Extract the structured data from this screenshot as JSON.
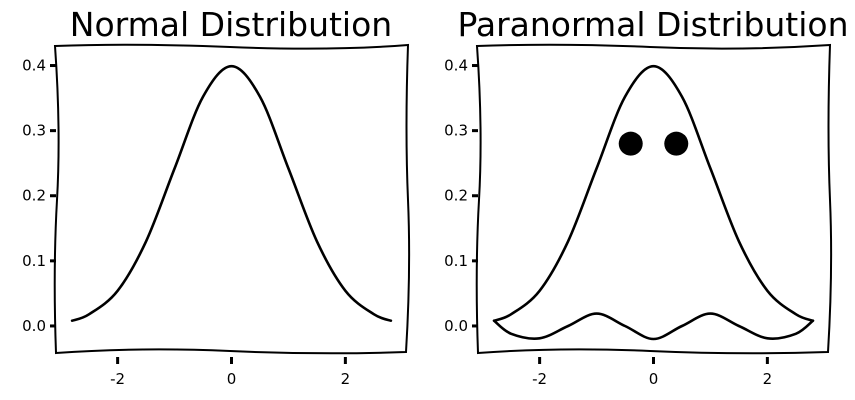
{
  "chart_data": [
    {
      "type": "line",
      "title": "Normal Distribution",
      "xlim": [
        -3.1,
        3.1
      ],
      "ylim": [
        -0.04,
        0.43
      ],
      "x_ticks": [
        -2,
        0,
        2
      ],
      "y_ticks": [
        0.0,
        0.1,
        0.2,
        0.3,
        0.4
      ],
      "x_tick_labels": [
        "-2",
        "0",
        "2"
      ],
      "y_tick_labels": [
        "0.0",
        "0.1",
        "0.2",
        "0.3",
        "0.4"
      ],
      "grid": false,
      "series": [
        {
          "x": [
            -2.8,
            -2.5,
            -2.0,
            -1.5,
            -1.0,
            -0.5,
            0.0,
            0.5,
            1.0,
            1.5,
            2.0,
            2.5,
            2.8
          ],
          "y": [
            0.008,
            0.018,
            0.054,
            0.13,
            0.242,
            0.352,
            0.399,
            0.352,
            0.242,
            0.13,
            0.054,
            0.018,
            0.008
          ]
        }
      ]
    },
    {
      "type": "line",
      "title": "Paranormal Distribution",
      "xlim": [
        -3.1,
        3.1
      ],
      "ylim": [
        -0.04,
        0.43
      ],
      "x_ticks": [
        -2,
        0,
        2
      ],
      "y_ticks": [
        0.0,
        0.1,
        0.2,
        0.3,
        0.4
      ],
      "x_tick_labels": [
        "-2",
        "0",
        "2"
      ],
      "y_tick_labels": [
        "0.0",
        "0.1",
        "0.2",
        "0.3",
        "0.4"
      ],
      "grid": false,
      "series": [
        {
          "x": [
            -2.8,
            -2.5,
            -2.0,
            -1.5,
            -1.0,
            -0.5,
            0.0,
            0.5,
            1.0,
            1.5,
            2.0,
            2.5,
            2.8
          ],
          "y": [
            0.008,
            0.018,
            0.054,
            0.13,
            0.242,
            0.352,
            0.399,
            0.352,
            0.242,
            0.13,
            0.054,
            0.018,
            0.008
          ]
        },
        {
          "x": [
            -2.8,
            -2.5,
            -2.0,
            -1.5,
            -1.0,
            -0.5,
            0.0,
            0.5,
            1.0,
            1.5,
            2.0,
            2.5,
            2.8
          ],
          "y": [
            0.008,
            -0.012,
            -0.019,
            0.0,
            0.019,
            0.0,
            -0.02,
            0.0,
            0.019,
            0.0,
            -0.019,
            -0.012,
            0.008
          ]
        }
      ],
      "markers": [
        {
          "x": -0.4,
          "y": 0.28
        },
        {
          "x": 0.4,
          "y": 0.28
        }
      ]
    }
  ]
}
